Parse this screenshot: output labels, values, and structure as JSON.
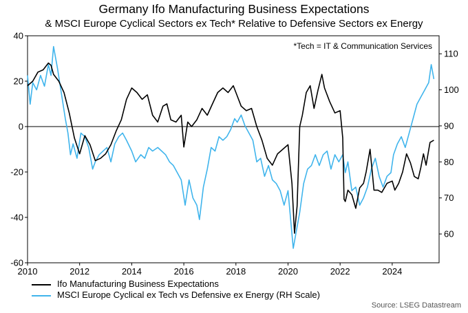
{
  "title": "Germany Ifo Manufacturing Business Expectations",
  "subtitle": "& MSCI Europe Cyclical Sectors ex Tech* Relative to Defensive Sectors ex Energy",
  "source": "Source: LSEG Datastream",
  "chart_data": {
    "type": "line",
    "annotation": "*Tech = IT & Communication Services",
    "x_ticks": [
      "2010",
      "2012",
      "2014",
      "2016",
      "2018",
      "2020",
      "2022",
      "2024"
    ],
    "x_tick_values": [
      2010,
      2012,
      2014,
      2016,
      2018,
      2020,
      2022,
      2024
    ],
    "xlim": [
      2010,
      2025.8
    ],
    "y_left": {
      "lim": [
        -60,
        40
      ],
      "ticks": [
        "40",
        "20",
        "0",
        "-20",
        "-40",
        "-60"
      ],
      "tick_values": [
        40,
        20,
        0,
        -20,
        -40,
        -60
      ],
      "zero_line": 0
    },
    "y_right": {
      "lim": [
        52,
        115
      ],
      "ticks": [
        "110",
        "100",
        "90",
        "80",
        "70",
        "60"
      ],
      "tick_values": [
        110,
        100,
        90,
        80,
        70,
        60
      ]
    },
    "series": [
      {
        "name": "Ifo Manufacturing Business Expectations",
        "axis": "left",
        "color": "#000000",
        "x": [
          2010.0,
          2010.2,
          2010.4,
          2010.6,
          2010.8,
          2010.9,
          2011.0,
          2011.2,
          2011.4,
          2011.6,
          2011.8,
          2012.0,
          2012.2,
          2012.4,
          2012.6,
          2012.8,
          2013.0,
          2013.2,
          2013.4,
          2013.6,
          2013.8,
          2014.0,
          2014.2,
          2014.4,
          2014.6,
          2014.8,
          2015.0,
          2015.2,
          2015.35,
          2015.5,
          2015.7,
          2015.9,
          2016.0,
          2016.15,
          2016.3,
          2016.5,
          2016.7,
          2016.9,
          2017.1,
          2017.3,
          2017.5,
          2017.7,
          2017.9,
          2018.0,
          2018.2,
          2018.4,
          2018.6,
          2018.8,
          2019.0,
          2019.2,
          2019.4,
          2019.6,
          2019.8,
          2020.0,
          2020.15,
          2020.25,
          2020.35,
          2020.45,
          2020.55,
          2020.7,
          2020.85,
          2021.0,
          2021.15,
          2021.3,
          2021.4,
          2021.6,
          2021.8,
          2022.0,
          2022.1,
          2022.15,
          2022.2,
          2022.3,
          2022.45,
          2022.6,
          2022.75,
          2022.9,
          2023.0,
          2023.15,
          2023.3,
          2023.45,
          2023.6,
          2023.8,
          2024.0,
          2024.1,
          2024.25,
          2024.4,
          2024.55,
          2024.7,
          2024.85,
          2025.0,
          2025.1,
          2025.2,
          2025.3,
          2025.45,
          2025.6
        ],
        "values": [
          18,
          20,
          24,
          25,
          28,
          27,
          23,
          20,
          15,
          6,
          -5,
          -12,
          -4,
          -8,
          -15,
          -14,
          -12,
          -8,
          -2,
          3,
          12,
          17,
          15,
          12,
          14,
          5,
          2,
          9,
          10,
          3,
          2,
          5,
          -9,
          2,
          0,
          3,
          8,
          5,
          10,
          15,
          17,
          15,
          18,
          15,
          9,
          7,
          8,
          0,
          -6,
          -14,
          -17,
          -12,
          -10,
          -8,
          -25,
          -47,
          -35,
          0,
          5,
          15,
          18,
          8,
          16,
          23,
          17,
          11,
          6,
          7,
          -5,
          -32,
          -33,
          -28,
          -30,
          -36,
          -27,
          -25,
          -20,
          -10,
          -28,
          -28,
          -29,
          -25,
          -24,
          -28,
          -25,
          -20,
          -12,
          -16,
          -22,
          -23,
          -18,
          -12,
          -17,
          -7,
          -6
        ],
        "legend": "Ifo Manufacturing Business Expectations"
      },
      {
        "name": "MSCI Europe Cyclical ex Tech vs Defensive ex Energy (RH Scale)",
        "axis": "right",
        "color": "#3fb4ec",
        "x": [
          2010.0,
          2010.1,
          2010.2,
          2010.35,
          2010.5,
          2010.65,
          2010.8,
          2010.9,
          2011.0,
          2011.15,
          2011.3,
          2011.45,
          2011.55,
          2011.65,
          2011.75,
          2011.9,
          2012.05,
          2012.2,
          2012.35,
          2012.5,
          2012.6,
          2012.75,
          2012.9,
          2013.05,
          2013.2,
          2013.35,
          2013.5,
          2013.65,
          2013.8,
          2014.0,
          2014.15,
          2014.35,
          2014.5,
          2014.65,
          2014.8,
          2015.0,
          2015.15,
          2015.3,
          2015.45,
          2015.6,
          2015.75,
          2015.9,
          2016.05,
          2016.2,
          2016.35,
          2016.5,
          2016.6,
          2016.75,
          2016.9,
          2017.05,
          2017.2,
          2017.35,
          2017.5,
          2017.65,
          2017.8,
          2017.95,
          2018.05,
          2018.2,
          2018.35,
          2018.5,
          2018.65,
          2018.8,
          2018.95,
          2019.1,
          2019.25,
          2019.4,
          2019.55,
          2019.7,
          2019.85,
          2020.0,
          2020.1,
          2020.2,
          2020.3,
          2020.45,
          2020.6,
          2020.75,
          2020.9,
          2021.05,
          2021.2,
          2021.35,
          2021.5,
          2021.65,
          2021.8,
          2021.95,
          2022.1,
          2022.2,
          2022.3,
          2022.45,
          2022.6,
          2022.75,
          2022.9,
          2023.05,
          2023.2,
          2023.35,
          2023.5,
          2023.65,
          2023.8,
          2023.95,
          2024.05,
          2024.2,
          2024.35,
          2024.5,
          2024.65,
          2024.8,
          2024.95,
          2025.1,
          2025.25,
          2025.4,
          2025.5,
          2025.6
        ],
        "values": [
          104,
          96,
          102,
          100,
          104,
          101,
          107,
          104,
          112,
          106,
          99,
          92,
          88,
          82,
          85,
          81,
          88,
          87,
          84,
          78,
          80,
          82,
          83,
          84,
          80,
          85,
          87,
          88,
          86,
          83,
          80,
          82,
          81,
          84,
          83,
          84,
          83,
          82,
          80,
          79,
          77,
          75,
          68,
          75,
          70,
          68,
          64,
          73,
          78,
          84,
          83,
          87,
          86,
          87,
          89,
          92,
          91,
          93,
          90,
          88,
          86,
          80,
          81,
          76,
          79,
          75,
          74,
          72,
          68,
          72,
          64,
          56,
          60,
          66,
          74,
          78,
          79,
          82,
          79,
          82,
          83,
          78,
          82,
          80,
          82,
          77,
          80,
          72,
          73,
          68,
          70,
          73,
          78,
          81,
          76,
          73,
          76,
          77,
          82,
          85,
          87,
          84,
          88,
          92,
          96,
          98,
          100,
          102,
          107,
          103
        ],
        "legend": "MSCI Europe Cyclical ex Tech vs Defensive ex Energy (RH Scale)"
      }
    ]
  }
}
